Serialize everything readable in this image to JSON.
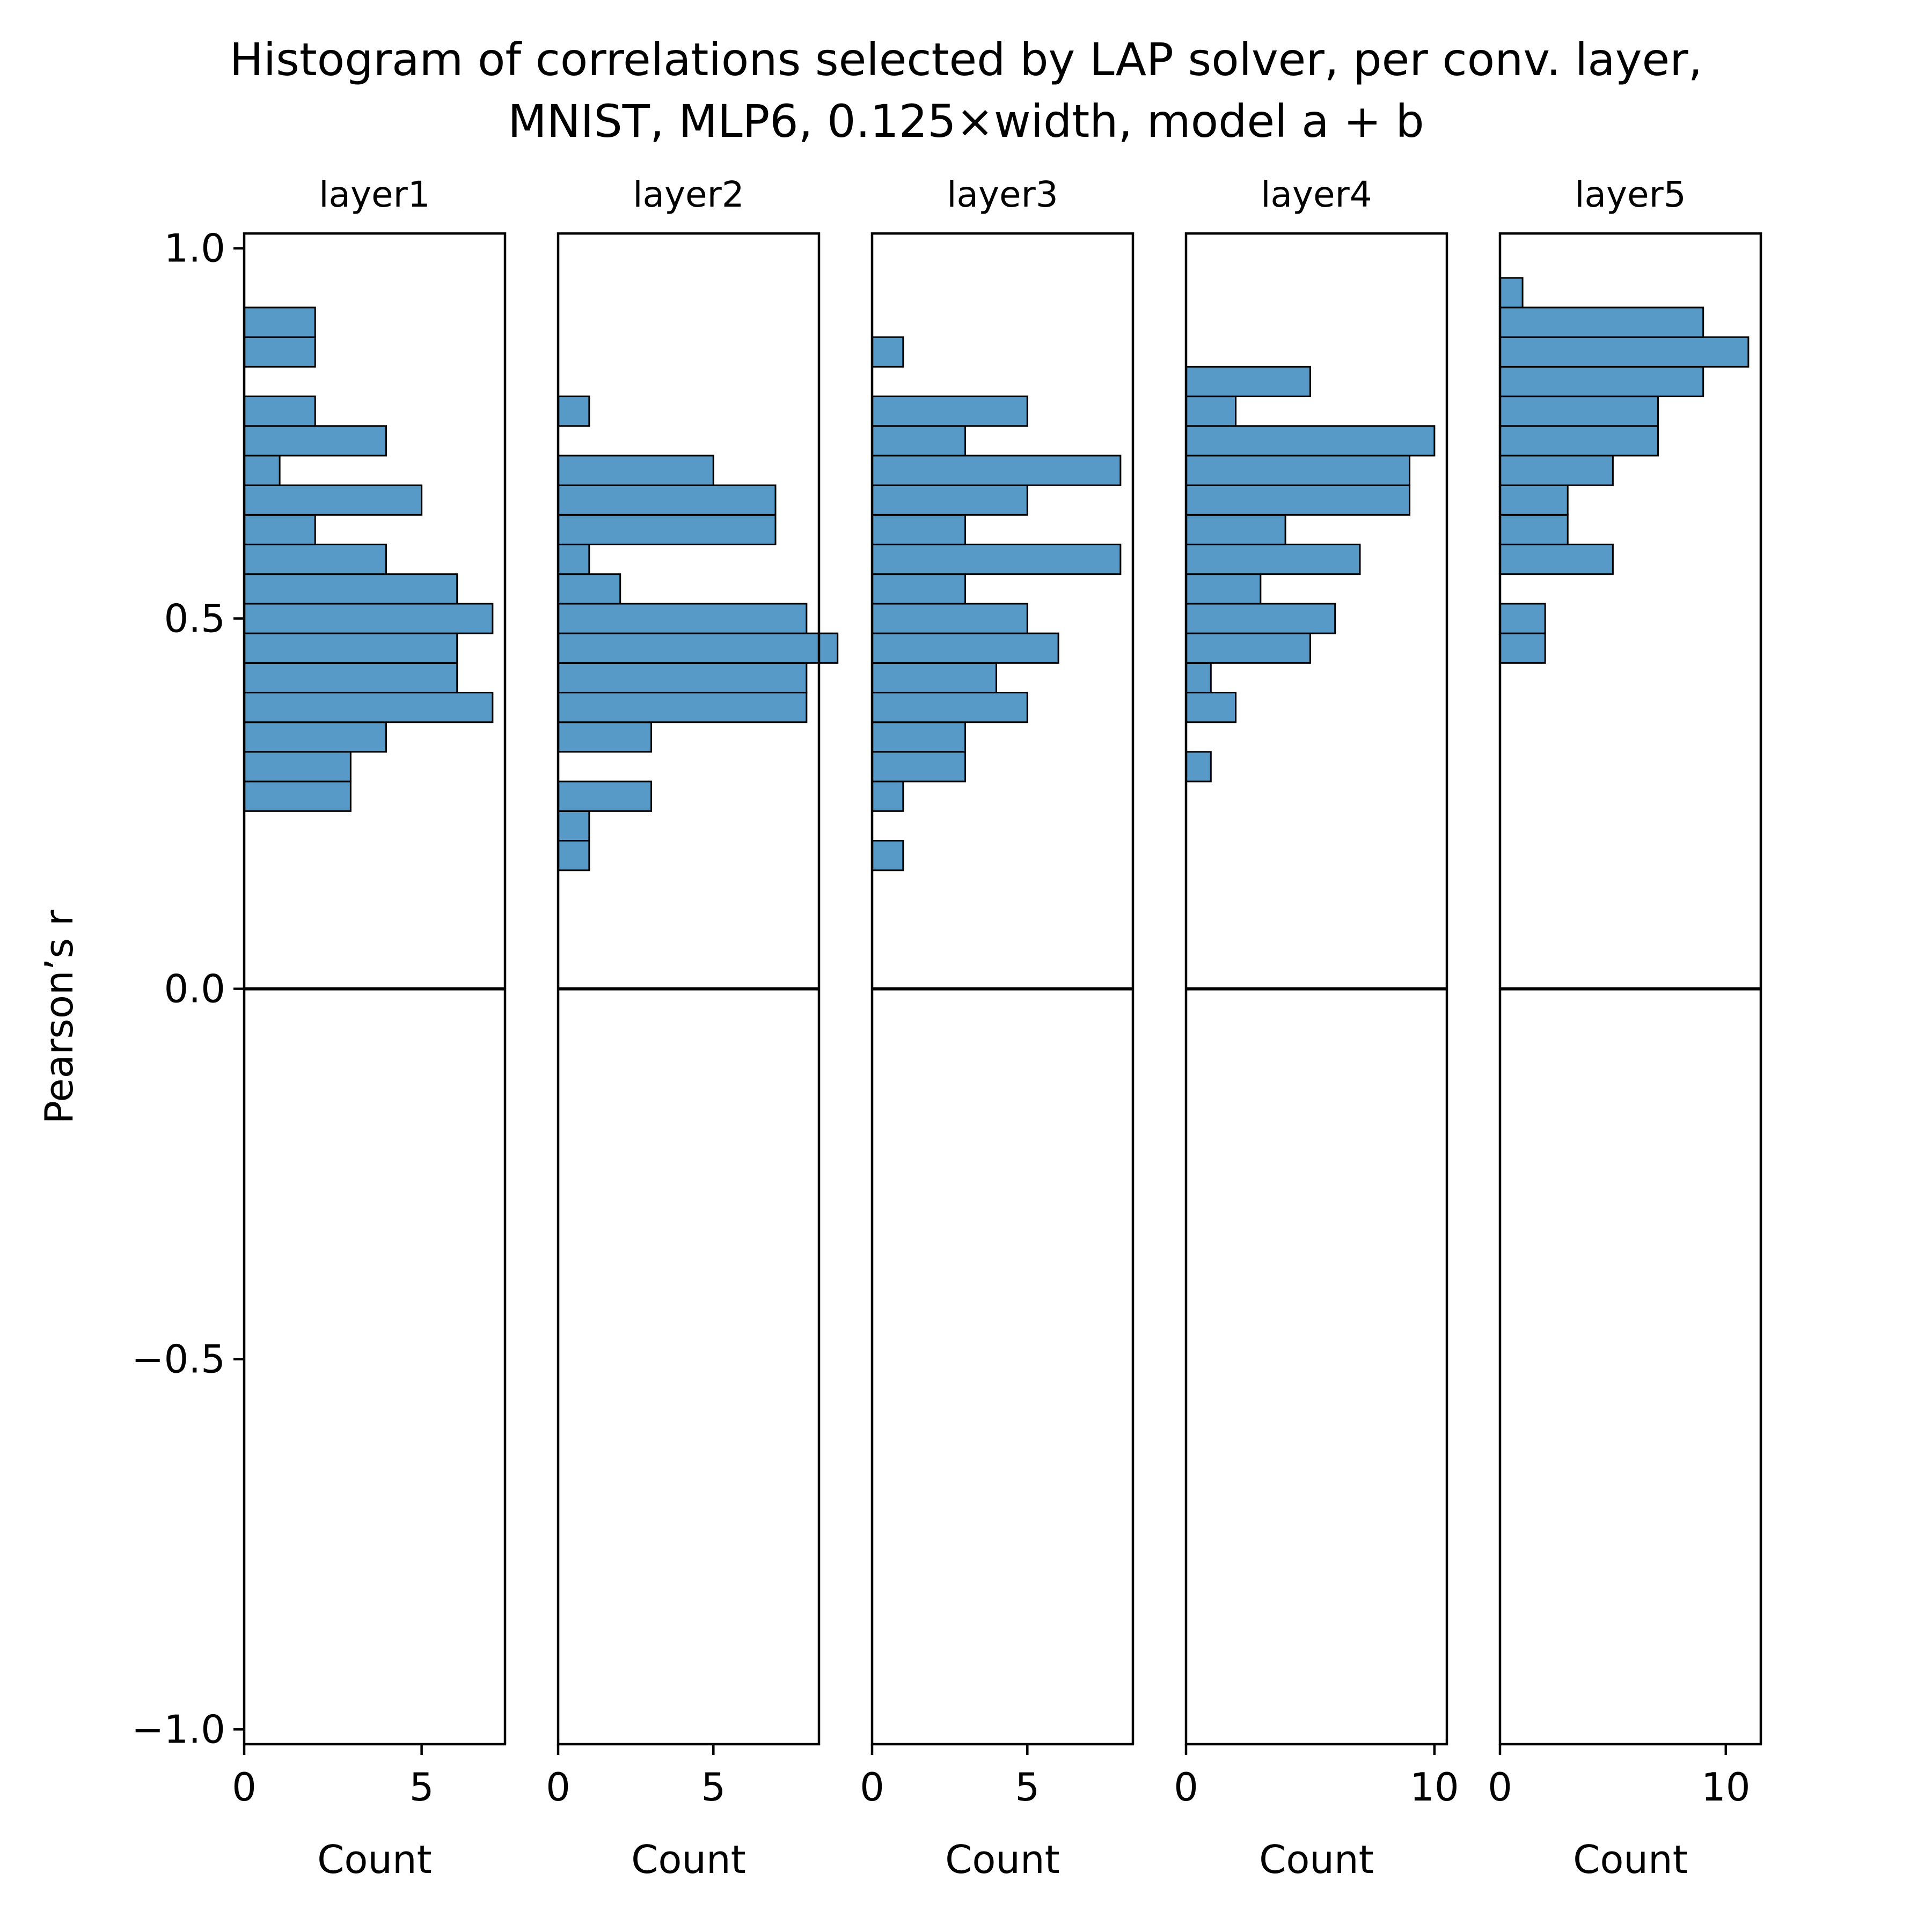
{
  "chart_data": {
    "type": "bar",
    "orientation": "horizontal",
    "title": "Histogram of correlations selected by LAP solver, per conv. layer,",
    "subtitle": "MNIST, MLP6, 0.125×width, model a + b",
    "ylabel": "Pearson’s r",
    "xlabel": "Count",
    "ylim": [
      -1.02,
      1.02
    ],
    "yticks": [
      {
        "value": 1.0,
        "label": "1.0"
      },
      {
        "value": 0.5,
        "label": "0.5"
      },
      {
        "value": 0.0,
        "label": "0.0"
      },
      {
        "value": -0.5,
        "label": "−0.5"
      },
      {
        "value": -1.0,
        "label": "−1.0"
      }
    ],
    "bar_color": "#5799c7",
    "reference_line": 0,
    "bin_width": 0.04,
    "panels": [
      {
        "title": "layer1",
        "xlim": [
          0,
          7.35
        ],
        "xticks": [
          {
            "value": 0,
            "label": "0"
          },
          {
            "value": 5,
            "label": "5"
          }
        ],
        "bins": [
          {
            "y": 0.24,
            "count": 3
          },
          {
            "y": 0.28,
            "count": 3
          },
          {
            "y": 0.32,
            "count": 4
          },
          {
            "y": 0.36,
            "count": 7
          },
          {
            "y": 0.4,
            "count": 6
          },
          {
            "y": 0.44,
            "count": 6
          },
          {
            "y": 0.48,
            "count": 7
          },
          {
            "y": 0.52,
            "count": 6
          },
          {
            "y": 0.56,
            "count": 4
          },
          {
            "y": 0.6,
            "count": 2
          },
          {
            "y": 0.64,
            "count": 5
          },
          {
            "y": 0.68,
            "count": 1
          },
          {
            "y": 0.72,
            "count": 4
          },
          {
            "y": 0.76,
            "count": 2
          },
          {
            "y": 0.84,
            "count": 2
          },
          {
            "y": 0.88,
            "count": 2
          }
        ]
      },
      {
        "title": "layer2",
        "xlim": [
          0,
          8.4
        ],
        "xticks": [
          {
            "value": 0,
            "label": "0"
          },
          {
            "value": 5,
            "label": "5"
          }
        ],
        "bins": [
          {
            "y": 0.16,
            "count": 1
          },
          {
            "y": 0.2,
            "count": 1
          },
          {
            "y": 0.24,
            "count": 3
          },
          {
            "y": 0.32,
            "count": 3
          },
          {
            "y": 0.36,
            "count": 8
          },
          {
            "y": 0.4,
            "count": 8
          },
          {
            "y": 0.44,
            "count": 9
          },
          {
            "y": 0.48,
            "count": 8
          },
          {
            "y": 0.52,
            "count": 2
          },
          {
            "y": 0.56,
            "count": 1
          },
          {
            "y": 0.6,
            "count": 7
          },
          {
            "y": 0.64,
            "count": 7
          },
          {
            "y": 0.68,
            "count": 5
          },
          {
            "y": 0.76,
            "count": 1
          }
        ]
      },
      {
        "title": "layer3",
        "xlim": [
          0,
          8.4
        ],
        "xticks": [
          {
            "value": 0,
            "label": "0"
          },
          {
            "value": 5,
            "label": "5"
          }
        ],
        "bins": [
          {
            "y": 0.16,
            "count": 1
          },
          {
            "y": 0.24,
            "count": 1
          },
          {
            "y": 0.28,
            "count": 3
          },
          {
            "y": 0.32,
            "count": 3
          },
          {
            "y": 0.36,
            "count": 5
          },
          {
            "y": 0.4,
            "count": 4
          },
          {
            "y": 0.44,
            "count": 6
          },
          {
            "y": 0.48,
            "count": 5
          },
          {
            "y": 0.52,
            "count": 3
          },
          {
            "y": 0.56,
            "count": 8
          },
          {
            "y": 0.6,
            "count": 3
          },
          {
            "y": 0.64,
            "count": 5
          },
          {
            "y": 0.68,
            "count": 8
          },
          {
            "y": 0.72,
            "count": 3
          },
          {
            "y": 0.76,
            "count": 5
          },
          {
            "y": 0.84,
            "count": 1
          }
        ]
      },
      {
        "title": "layer4",
        "xlim": [
          0,
          10.5
        ],
        "xticks": [
          {
            "value": 0,
            "label": "0"
          },
          {
            "value": 10,
            "label": "10"
          }
        ],
        "bins": [
          {
            "y": 0.28,
            "count": 1
          },
          {
            "y": 0.36,
            "count": 2
          },
          {
            "y": 0.4,
            "count": 1
          },
          {
            "y": 0.44,
            "count": 5
          },
          {
            "y": 0.48,
            "count": 6
          },
          {
            "y": 0.52,
            "count": 3
          },
          {
            "y": 0.56,
            "count": 7
          },
          {
            "y": 0.6,
            "count": 4
          },
          {
            "y": 0.64,
            "count": 9
          },
          {
            "y": 0.68,
            "count": 9
          },
          {
            "y": 0.72,
            "count": 10
          },
          {
            "y": 0.76,
            "count": 2
          },
          {
            "y": 0.8,
            "count": 5
          }
        ]
      },
      {
        "title": "layer5",
        "xlim": [
          0,
          11.55
        ],
        "xticks": [
          {
            "value": 0,
            "label": "0"
          },
          {
            "value": 10,
            "label": "10"
          }
        ],
        "bins": [
          {
            "y": 0.44,
            "count": 2
          },
          {
            "y": 0.48,
            "count": 2
          },
          {
            "y": 0.56,
            "count": 5
          },
          {
            "y": 0.6,
            "count": 3
          },
          {
            "y": 0.64,
            "count": 3
          },
          {
            "y": 0.68,
            "count": 5
          },
          {
            "y": 0.72,
            "count": 7
          },
          {
            "y": 0.76,
            "count": 7
          },
          {
            "y": 0.8,
            "count": 9
          },
          {
            "y": 0.84,
            "count": 11
          },
          {
            "y": 0.88,
            "count": 9
          },
          {
            "y": 0.92,
            "count": 1
          }
        ]
      }
    ]
  }
}
